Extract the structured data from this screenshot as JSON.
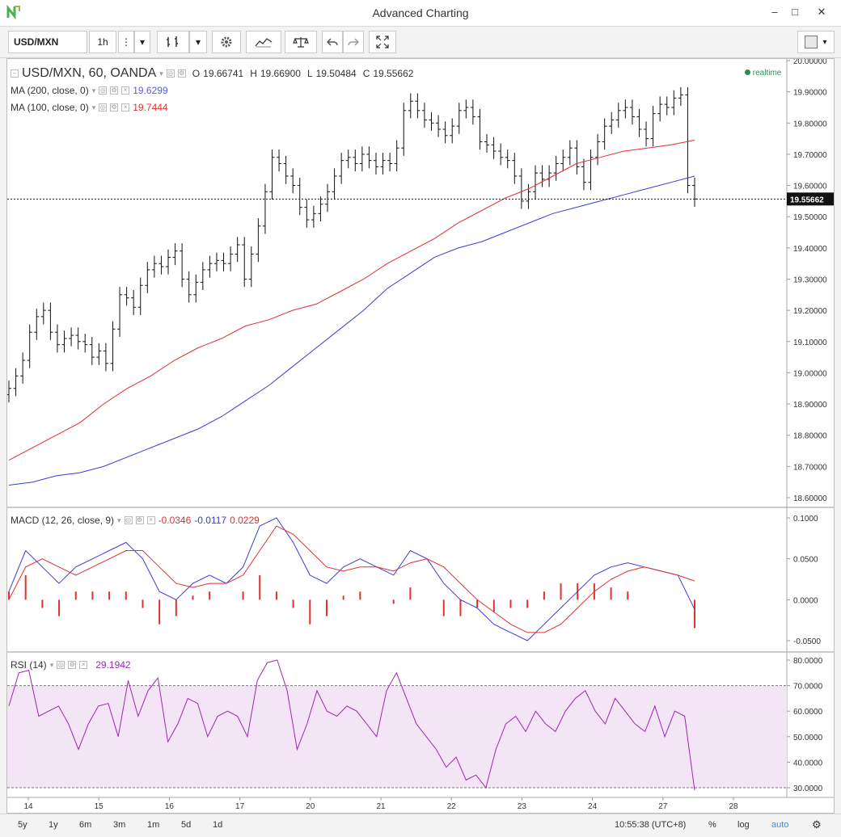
{
  "window": {
    "title": "Advanced Charting"
  },
  "toolbar": {
    "symbol": "USD/MXN",
    "interval": "1h",
    "more_glyph": "⋮",
    "dropdown_glyph": "▾",
    "icons": [
      "bar-style-icon",
      "gear-icon",
      "indicators-icon",
      "compare-icon",
      "undo-icon",
      "redo-icon",
      "fullscreen-icon",
      "layout-icon"
    ]
  },
  "main_legend": {
    "title": "USD/MXN, 60, OANDA",
    "o_label": "O",
    "o_value": "19.66741",
    "h_label": "H",
    "h_value": "19.66900",
    "l_label": "L",
    "l_value": "19.50484",
    "c_label": "C",
    "c_value": "19.55662",
    "realtime": "realtime"
  },
  "ma200": {
    "label": "MA (200, close, 0)",
    "value": "19.6299",
    "color": "#3b3bd9"
  },
  "ma100": {
    "label": "MA (100, close, 0)",
    "value": "19.7444",
    "color": "#e03030"
  },
  "macd_legend": {
    "label": "MACD (12, 26, close, 9)",
    "hist": "-0.0346",
    "macd": "-0.0117",
    "signal": "0.0229"
  },
  "rsi_legend": {
    "label": "RSI (14)",
    "value": "29.1942",
    "color": "#9c27b0"
  },
  "price_axis": {
    "ticks": [
      "20.00000",
      "19.90000",
      "19.80000",
      "19.70000",
      "19.60000",
      "19.50000",
      "19.40000",
      "19.30000",
      "19.20000",
      "19.10000",
      "19.00000",
      "18.90000",
      "18.80000",
      "18.70000",
      "18.60000"
    ],
    "last_price": "19.55662"
  },
  "macd_axis": {
    "ticks": [
      "0.1000",
      "0.0500",
      "0.0000",
      "-0.0500"
    ]
  },
  "rsi_axis": {
    "ticks": [
      "80.0000",
      "70.0000",
      "60.0000",
      "50.0000",
      "40.0000",
      "30.0000"
    ]
  },
  "time_axis": {
    "ticks": [
      "14",
      "15",
      "16",
      "17",
      "20",
      "21",
      "22",
      "23",
      "24",
      "27",
      "28"
    ]
  },
  "bottom_bar": {
    "ranges": [
      "5y",
      "1y",
      "6m",
      "3m",
      "1m",
      "5d",
      "1d"
    ],
    "clock": "10:55:38 (UTC+8)",
    "percent": "%",
    "log": "log",
    "auto": "auto"
  },
  "chart_data": [
    {
      "type": "ohlc",
      "series_name": "USD/MXN, 60, OANDA",
      "ylim": [
        18.6,
        20.0
      ],
      "x_ticks": [
        "14",
        "15",
        "16",
        "17",
        "20",
        "21",
        "22",
        "23",
        "24",
        "27",
        "28"
      ],
      "close": [
        18.95,
        18.99,
        19.04,
        19.13,
        19.18,
        19.2,
        19.13,
        19.09,
        19.11,
        19.12,
        19.1,
        19.09,
        19.05,
        19.07,
        19.03,
        19.14,
        19.25,
        19.24,
        19.21,
        19.28,
        19.33,
        19.35,
        19.34,
        19.37,
        19.39,
        19.3,
        19.25,
        19.29,
        19.33,
        19.35,
        19.36,
        19.35,
        19.38,
        19.41,
        19.3,
        19.38,
        19.47,
        19.58,
        19.69,
        19.67,
        19.63,
        19.6,
        19.53,
        19.49,
        19.51,
        19.54,
        19.58,
        19.63,
        19.68,
        19.69,
        19.67,
        19.7,
        19.68,
        19.66,
        19.68,
        19.67,
        19.72,
        19.84,
        19.87,
        19.84,
        19.81,
        19.8,
        19.78,
        19.76,
        19.79,
        19.84,
        19.85,
        19.82,
        19.74,
        19.73,
        19.71,
        19.69,
        19.68,
        19.63,
        19.55,
        19.58,
        19.64,
        19.62,
        19.64,
        19.67,
        19.69,
        19.72,
        19.66,
        19.61,
        19.69,
        19.74,
        19.79,
        19.81,
        19.84,
        19.85,
        19.82,
        19.78,
        19.75,
        19.83,
        19.86,
        19.85,
        19.88,
        19.89,
        19.6,
        19.55662
      ],
      "ma100": [
        18.72,
        18.76,
        18.8,
        18.84,
        18.9,
        18.95,
        18.99,
        19.04,
        19.08,
        19.11,
        19.15,
        19.17,
        19.2,
        19.22,
        19.26,
        19.3,
        19.35,
        19.39,
        19.43,
        19.48,
        19.52,
        19.56,
        19.59,
        19.63,
        19.67,
        19.69,
        19.71,
        19.72,
        19.73,
        19.745
      ],
      "ma200": [
        18.64,
        18.65,
        18.67,
        18.68,
        18.7,
        18.73,
        18.76,
        18.79,
        18.82,
        18.86,
        18.91,
        18.96,
        19.02,
        19.08,
        19.14,
        19.2,
        19.27,
        19.32,
        19.37,
        19.4,
        19.42,
        19.45,
        19.48,
        19.51,
        19.53,
        19.55,
        19.57,
        19.59,
        19.61,
        19.63
      ]
    },
    {
      "type": "line",
      "series_name": "MACD (12, 26, close, 9)",
      "ylim": [
        -0.05,
        0.1
      ],
      "macd": [
        0.01,
        0.06,
        0.04,
        0.02,
        0.04,
        0.05,
        0.06,
        0.07,
        0.05,
        0.01,
        0.0,
        0.02,
        0.03,
        0.02,
        0.04,
        0.09,
        0.1,
        0.07,
        0.03,
        0.02,
        0.04,
        0.05,
        0.04,
        0.03,
        0.06,
        0.05,
        0.02,
        0.0,
        -0.01,
        -0.03,
        -0.04,
        -0.05,
        -0.03,
        -0.01,
        0.01,
        0.03,
        0.04,
        0.045,
        0.04,
        0.035,
        0.03,
        -0.0117
      ],
      "signal": [
        0.0,
        0.04,
        0.05,
        0.04,
        0.03,
        0.04,
        0.05,
        0.06,
        0.06,
        0.04,
        0.02,
        0.015,
        0.02,
        0.02,
        0.03,
        0.06,
        0.09,
        0.08,
        0.06,
        0.04,
        0.035,
        0.04,
        0.04,
        0.035,
        0.045,
        0.05,
        0.04,
        0.02,
        0.0,
        -0.015,
        -0.03,
        -0.04,
        -0.04,
        -0.03,
        -0.01,
        0.01,
        0.025,
        0.035,
        0.04,
        0.035,
        0.03,
        0.0229
      ],
      "histogram": [
        0.01,
        0.03,
        -0.01,
        -0.02,
        0.01,
        0.01,
        0.01,
        0.01,
        -0.01,
        -0.03,
        -0.02,
        0.005,
        0.01,
        0.0,
        0.01,
        0.03,
        0.01,
        -0.01,
        -0.03,
        -0.02,
        0.005,
        0.01,
        0.0,
        -0.005,
        0.015,
        0.0,
        -0.02,
        -0.02,
        -0.01,
        -0.015,
        -0.01,
        -0.01,
        0.01,
        0.02,
        0.02,
        0.02,
        0.015,
        0.01,
        0.0,
        0.0,
        0.0,
        -0.0346
      ]
    },
    {
      "type": "line",
      "series_name": "RSI (14)",
      "ylim": [
        30,
        80
      ],
      "bands": [
        30,
        70
      ],
      "values": [
        62,
        75,
        76,
        58,
        60,
        62,
        55,
        45,
        55,
        62,
        63,
        50,
        72,
        58,
        68,
        73,
        48,
        55,
        65,
        63,
        50,
        58,
        60,
        58,
        50,
        72,
        79,
        80,
        68,
        45,
        55,
        68,
        60,
        58,
        62,
        60,
        55,
        50,
        68,
        75,
        65,
        55,
        50,
        45,
        38,
        42,
        33,
        35,
        30,
        45,
        55,
        58,
        52,
        60,
        55,
        52,
        60,
        65,
        68,
        60,
        55,
        65,
        60,
        55,
        52,
        62,
        50,
        60,
        58,
        29
      ]
    }
  ]
}
